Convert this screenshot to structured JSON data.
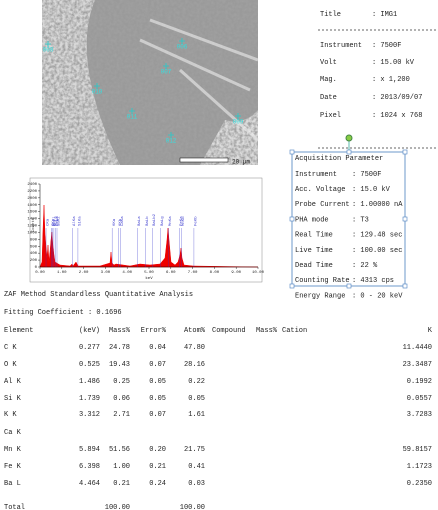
{
  "image": {
    "points": [
      "008",
      "006",
      "007",
      "010",
      "011",
      "012",
      "009"
    ],
    "scale_bar": "20 µm"
  },
  "info": {
    "rows": [
      {
        "label": "Title",
        "value": ": IMG1"
      },
      {
        "label": "Instrument",
        "value": ": 7500F"
      },
      {
        "label": "Volt",
        "value": ": 15.00 kV"
      },
      {
        "label": "Mag.",
        "value": ": x 1,200"
      },
      {
        "label": "Date",
        "value": ": 2013/09/07"
      },
      {
        "label": "Pixel",
        "value": ": 1024 x 768"
      }
    ]
  },
  "acquisition": {
    "title": "Acquisition Parameter",
    "rows": [
      {
        "label": "Instrument",
        "value": ": 7500F"
      },
      {
        "label": "Acc. Voltage",
        "value": ": 15.0 kV"
      },
      {
        "label": "Probe Current",
        "value": ": 1.00000 nA"
      },
      {
        "label": "PHA mode",
        "value": ": T3"
      },
      {
        "label": "Real Time",
        "value": ": 129.48 sec"
      },
      {
        "label": "Live Time",
        "value": ": 100.00 sec"
      },
      {
        "label": "Dead Time",
        "value": ": 22 %"
      },
      {
        "label": "Counting Rate",
        "value": ": 4313 cps"
      },
      {
        "label": "Energy Range",
        "value": ": 0 - 20 keV"
      }
    ]
  },
  "spectrum": {
    "type": "line",
    "y_label": "Counts",
    "x_label": "keV",
    "xlim": [
      0,
      10
    ],
    "xticks": [
      {
        "value": 0,
        "label": "0.00"
      },
      {
        "value": 1,
        "label": "1.00"
      },
      {
        "value": 2,
        "label": "2.00"
      },
      {
        "value": 3,
        "label": "3.00"
      },
      {
        "value": 4,
        "label": "4.00"
      },
      {
        "value": 5,
        "label": "5.00"
      },
      {
        "value": 6,
        "label": "6.00"
      },
      {
        "value": 7,
        "label": "7.00"
      },
      {
        "value": 8,
        "label": "8.00"
      },
      {
        "value": 9,
        "label": "9.00"
      },
      {
        "value": 10,
        "label": "10.00"
      }
    ],
    "ylim": [
      0,
      2400
    ],
    "yticks": [
      0,
      200,
      400,
      600,
      800,
      1000,
      1200,
      1400,
      1600,
      1800,
      2000,
      2200,
      2400
    ],
    "peaks": [
      {
        "label": "CKa",
        "x": 0.277
      },
      {
        "label": "OKa",
        "x": 0.525
      },
      {
        "label": "MnLl",
        "x": 0.56
      },
      {
        "label": "MnLa",
        "x": 0.637
      },
      {
        "label": "FeLa",
        "x": 0.705
      },
      {
        "label": "BaMz",
        "x": 0.78
      },
      {
        "label": "AlKa",
        "x": 1.486
      },
      {
        "label": "SiKa",
        "x": 1.739
      },
      {
        "label": "KKa",
        "x": 3.312
      },
      {
        "label": "KKb",
        "x": 3.59
      },
      {
        "label": "CaKa",
        "x": 3.69
      },
      {
        "label": "BaLa",
        "x": 4.464
      },
      {
        "label": "BaLb",
        "x": 4.83
      },
      {
        "label": "BaLb2",
        "x": 5.16
      },
      {
        "label": "BaLg",
        "x": 5.53
      },
      {
        "label": "MnKa",
        "x": 5.894
      },
      {
        "label": "FeKa",
        "x": 6.398
      },
      {
        "label": "MnKb",
        "x": 6.49
      },
      {
        "label": "FeKb",
        "x": 7.06
      }
    ]
  },
  "analysis": {
    "title": "ZAF Method Standardless Quantitative Analysis",
    "fitting": "Fitting Coefficient : 0.1696",
    "columns": {
      "element": "Element",
      "kev": "(keV)",
      "mass": "Mass%",
      "error": "Error%",
      "atom": "Atom%",
      "compound": "Compound",
      "cmass": "Mass%",
      "cation": "Cation",
      "k": "K"
    },
    "rows": [
      {
        "element": "C K",
        "kev": "0.277",
        "mass": "24.78",
        "error": "0.04",
        "atom": "47.80",
        "k": "11.4440"
      },
      {
        "element": "O K",
        "kev": "0.525",
        "mass": "19.43",
        "error": "0.07",
        "atom": "28.16",
        "k": "23.3487"
      },
      {
        "element": "Al K",
        "kev": "1.486",
        "mass": "0.25",
        "error": "0.05",
        "atom": "0.22",
        "k": "0.1992"
      },
      {
        "element": "Si K",
        "kev": "1.739",
        "mass": "0.06",
        "error": "0.05",
        "atom": "0.05",
        "k": "0.0557"
      },
      {
        "element": "K K",
        "kev": "3.312",
        "mass": "2.71",
        "error": "0.07",
        "atom": "1.61",
        "k": "3.7283"
      },
      {
        "element": "Ca K"
      },
      {
        "element": "Mn K",
        "kev": "5.894",
        "mass": "51.56",
        "error": "0.20",
        "atom": "21.75",
        "k": "59.8157"
      },
      {
        "element": "Fe K",
        "kev": "6.398",
        "mass": "1.00",
        "error": "0.21",
        "atom": "0.41",
        "k": "1.1723"
      },
      {
        "element": "Ba L",
        "kev": "4.464",
        "mass": "0.21",
        "error": "0.24",
        "atom": "0.03",
        "k": "0.2350"
      },
      {
        "element": "Total",
        "mass": "100.00",
        "atom": "100.00"
      }
    ]
  }
}
